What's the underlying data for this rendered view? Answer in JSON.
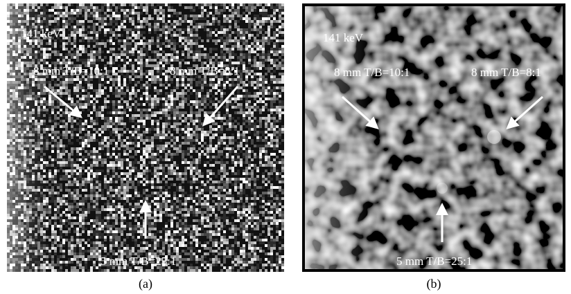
{
  "panels": [
    {
      "energy": "141 keV",
      "annotations": [
        "8 mm T/B=10:1",
        "8 mm T/B=8:1",
        "5 mm T/B=25:1"
      ],
      "caption": "(a)"
    },
    {
      "energy": "141 keV",
      "annotations": [
        "8 mm T/B=10:1",
        "8 mm T/B=8:1",
        "5 mm T/B=25:1"
      ],
      "caption": "(b)"
    }
  ]
}
